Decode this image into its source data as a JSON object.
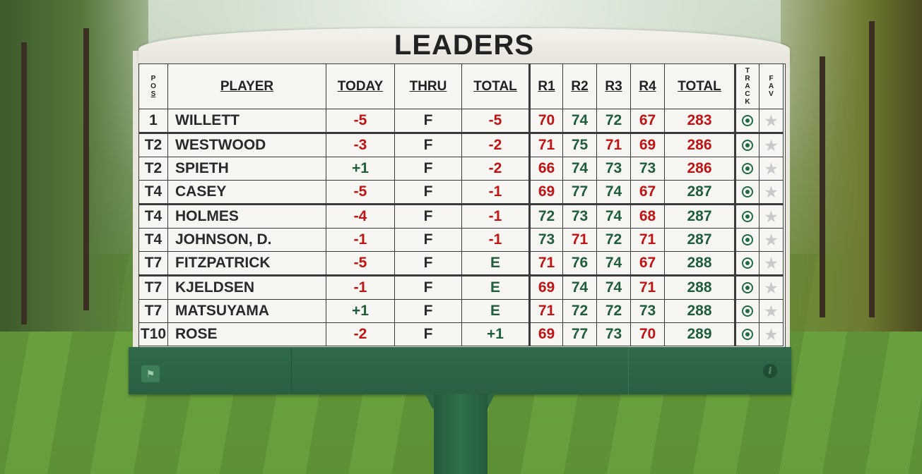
{
  "board": {
    "title": "LEADERS",
    "headers": {
      "pos": [
        "P",
        "O",
        "S"
      ],
      "player": "PLAYER",
      "today": "TODAY",
      "thru": "THRU",
      "total": "TOTAL",
      "r1": "R1",
      "r2": "R2",
      "r3": "R3",
      "r4": "R4",
      "total2": "TOTAL",
      "track": [
        "T",
        "R",
        "A",
        "C",
        "K"
      ],
      "fav": [
        "F",
        "A",
        "V"
      ]
    },
    "rows": [
      {
        "pos": "1",
        "player": "WILLETT",
        "today": "-5",
        "thru": "F",
        "total": "-5",
        "r1": "70",
        "r2": "74",
        "r3": "72",
        "r4": "67",
        "tot": "283"
      },
      {
        "pos": "T2",
        "player": "WESTWOOD",
        "today": "-3",
        "thru": "F",
        "total": "-2",
        "r1": "71",
        "r2": "75",
        "r3": "71",
        "r4": "69",
        "tot": "286"
      },
      {
        "pos": "T2",
        "player": "SPIETH",
        "today": "+1",
        "thru": "F",
        "total": "-2",
        "r1": "66",
        "r2": "74",
        "r3": "73",
        "r4": "73",
        "tot": "286"
      },
      {
        "pos": "T4",
        "player": "CASEY",
        "today": "-5",
        "thru": "F",
        "total": "-1",
        "r1": "69",
        "r2": "77",
        "r3": "74",
        "r4": "67",
        "tot": "287"
      },
      {
        "pos": "T4",
        "player": "HOLMES",
        "today": "-4",
        "thru": "F",
        "total": "-1",
        "r1": "72",
        "r2": "73",
        "r3": "74",
        "r4": "68",
        "tot": "287"
      },
      {
        "pos": "T4",
        "player": "JOHNSON, D.",
        "today": "-1",
        "thru": "F",
        "total": "-1",
        "r1": "73",
        "r2": "71",
        "r3": "72",
        "r4": "71",
        "tot": "287"
      },
      {
        "pos": "T7",
        "player": "FITZPATRICK",
        "today": "-5",
        "thru": "F",
        "total": "E",
        "r1": "71",
        "r2": "76",
        "r3": "74",
        "r4": "67",
        "tot": "288"
      },
      {
        "pos": "T7",
        "player": "KJELDSEN",
        "today": "-1",
        "thru": "F",
        "total": "E",
        "r1": "69",
        "r2": "74",
        "r3": "74",
        "r4": "71",
        "tot": "288"
      },
      {
        "pos": "T7",
        "player": "MATSUYAMA",
        "today": "+1",
        "thru": "F",
        "total": "E",
        "r1": "71",
        "r2": "72",
        "r3": "72",
        "r4": "73",
        "tot": "288"
      },
      {
        "pos": "T10",
        "player": "ROSE",
        "today": "-2",
        "thru": "F",
        "total": "+1",
        "r1": "69",
        "r2": "77",
        "r3": "73",
        "r4": "70",
        "tot": "289"
      }
    ],
    "icons": {
      "track": "target-icon",
      "fav": "star-icon",
      "tee": "tee-icon",
      "info": "info-icon"
    },
    "colors": {
      "under_par": "#c01313",
      "over_par": "#1f5e3b",
      "even": "#1f5e3b",
      "base_green": "#2f6a4a"
    }
  },
  "footer": {
    "info_glyph": "i"
  }
}
